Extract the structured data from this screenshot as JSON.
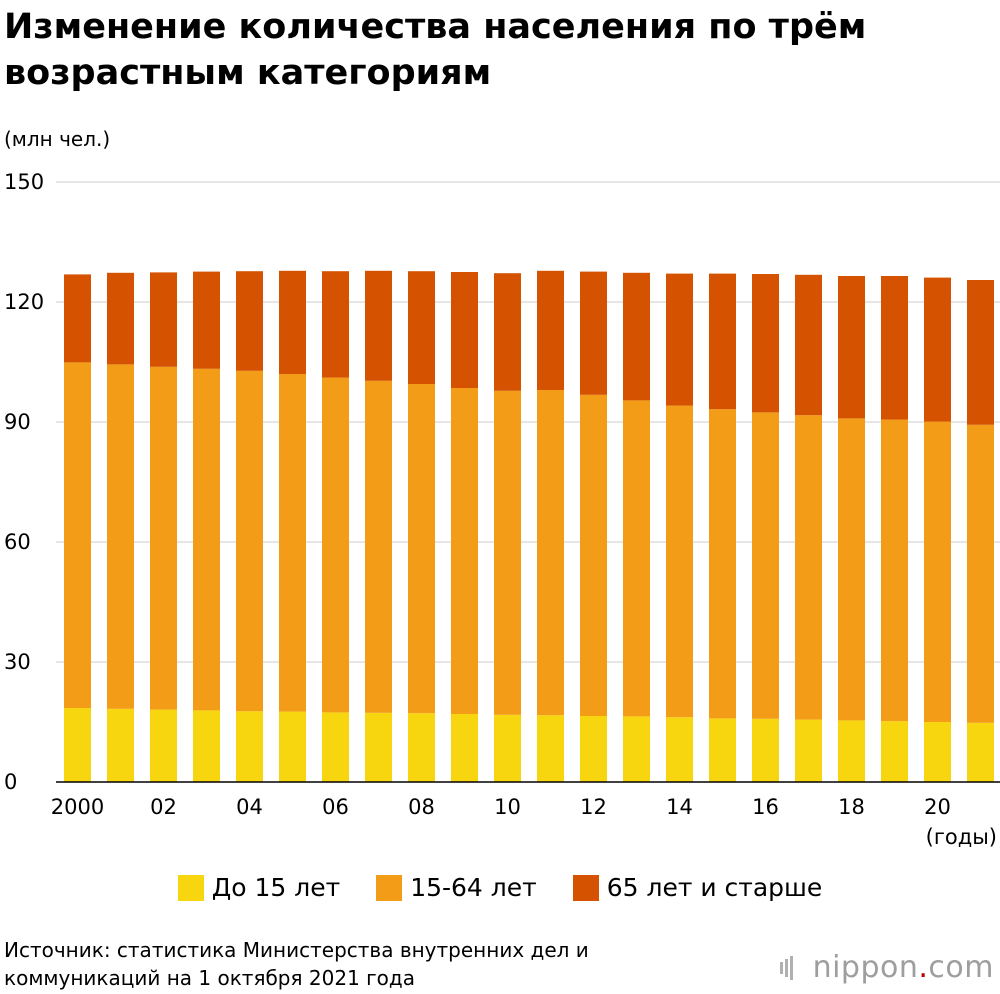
{
  "title": "Изменение количества населения по трём возрастным категориям",
  "unit_label": "(млн чел.)",
  "x_unit_label": "(годы)",
  "source": "Источник: статистика Министерства внутренних дел и коммуникаций на 1 октября 2021 года",
  "logo": {
    "main": "nippon",
    "dot": ".",
    "suffix": "com"
  },
  "colors": {
    "under15": "#f8d60f",
    "age15_64": "#f39c17",
    "over65": "#d55200",
    "grid": "#cccccc",
    "axis": "#000000"
  },
  "legend": [
    {
      "label": "До 15 лет",
      "color": "#f8d60f"
    },
    {
      "label": "15-64 лет",
      "color": "#f39c17"
    },
    {
      "label": "65 лет и старше",
      "color": "#d55200"
    }
  ],
  "chart_data": {
    "type": "bar",
    "stacked": true,
    "categories": [
      "2000",
      "2001",
      "2002",
      "2003",
      "2004",
      "2005",
      "2006",
      "2007",
      "2008",
      "2009",
      "2010",
      "2011",
      "2012",
      "2013",
      "2014",
      "2015",
      "2016",
      "2017",
      "2018",
      "2019",
      "2020",
      "2021"
    ],
    "tick_labels": [
      "2000",
      "",
      "02",
      "",
      "04",
      "",
      "06",
      "",
      "08",
      "",
      "10",
      "",
      "12",
      "",
      "14",
      "",
      "16",
      "",
      "18",
      "",
      "20",
      ""
    ],
    "series": [
      {
        "name": "До 15 лет",
        "color": "#f8d60f",
        "values": [
          18.5,
          18.3,
          18.1,
          17.9,
          17.7,
          17.6,
          17.4,
          17.3,
          17.2,
          17.0,
          16.8,
          16.7,
          16.5,
          16.4,
          16.2,
          15.9,
          15.8,
          15.6,
          15.4,
          15.2,
          15.0,
          14.8
        ]
      },
      {
        "name": "15-64 лет",
        "color": "#f39c17",
        "values": [
          86.4,
          86.1,
          85.7,
          85.4,
          85.1,
          84.4,
          83.7,
          83.0,
          82.3,
          81.5,
          81.0,
          81.3,
          80.3,
          79.0,
          77.9,
          77.3,
          76.6,
          76.1,
          75.5,
          75.4,
          75.1,
          74.5
        ]
      },
      {
        "name": "65 лет и старше",
        "color": "#d55200",
        "values": [
          22.0,
          22.9,
          23.6,
          24.3,
          24.9,
          25.8,
          26.6,
          27.5,
          28.2,
          29.0,
          29.4,
          29.8,
          30.8,
          31.9,
          33.0,
          33.9,
          34.6,
          35.1,
          35.6,
          35.9,
          36.0,
          36.2
        ]
      }
    ],
    "ylim": [
      0,
      150
    ],
    "yticks": [
      0,
      30,
      60,
      90,
      120,
      150
    ],
    "grid": true,
    "legend_position": "bottom"
  }
}
